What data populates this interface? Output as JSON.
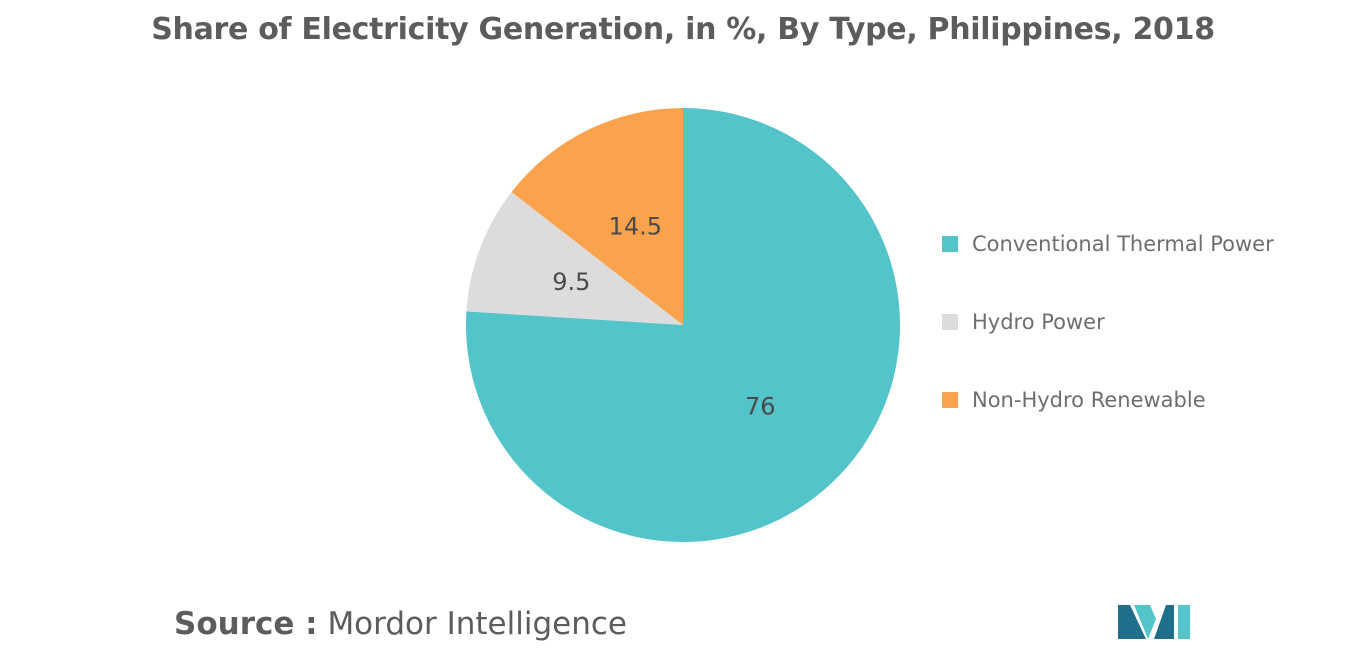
{
  "chart_data": {
    "type": "pie",
    "title": "Share of Electricity Generation, in %, By Type, Philippines, 2018",
    "categories": [
      "Conventional Thermal Power",
      "Hydro Power",
      "Non-Hydro Renewable"
    ],
    "values": [
      76,
      9.5,
      14.5
    ],
    "data_labels": [
      "76",
      "9.5",
      "14.5"
    ],
    "colors": [
      "#52c4ca",
      "#dcdcdc",
      "#fba24c"
    ],
    "legend_position": "right",
    "start_angle_deg": 0,
    "direction": "clockwise"
  },
  "source": {
    "prefix": "Source :",
    "name": "Mordor Intelligence"
  },
  "logo": {
    "colors": [
      "#1f6f8b",
      "#52c4ca"
    ]
  }
}
